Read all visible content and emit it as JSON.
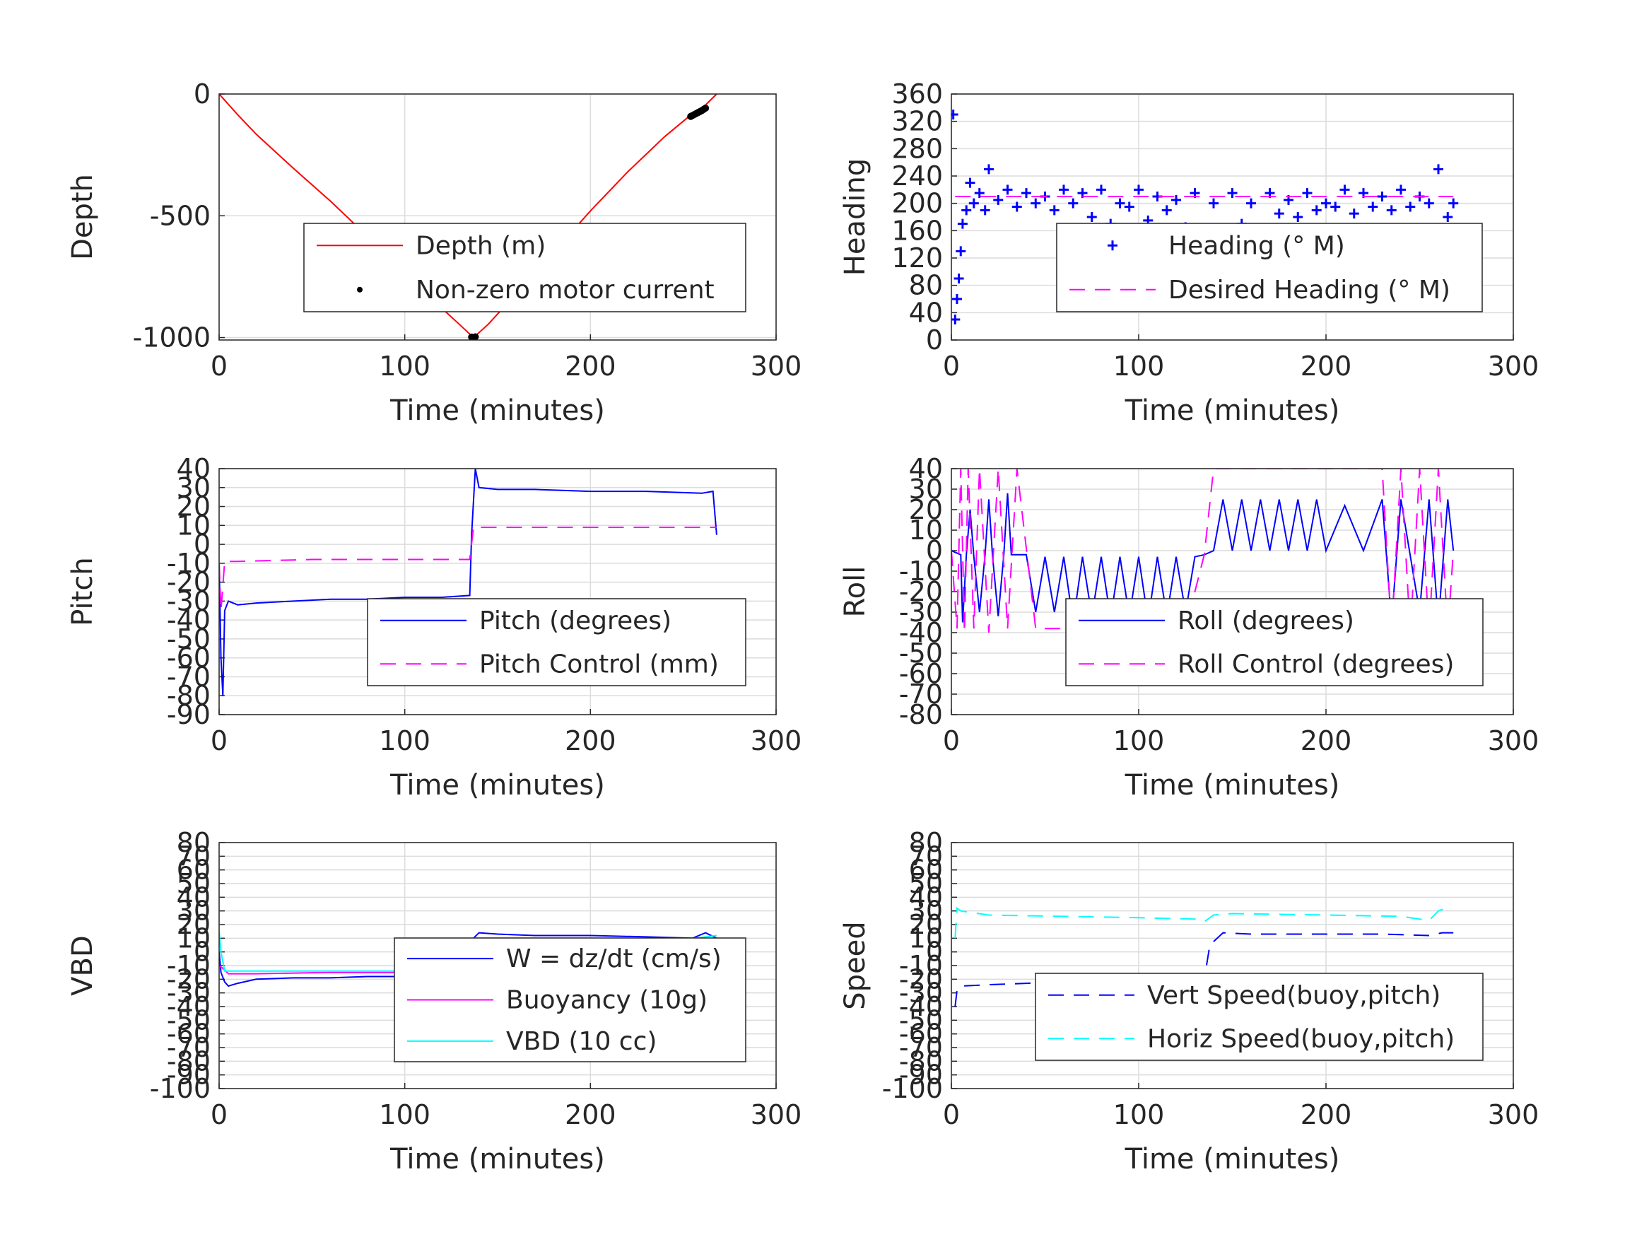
{
  "figure": {
    "panels": [
      {
        "id": "depth",
        "ylabel": "Depth",
        "xlabel": "Time (minutes)",
        "yticks": [
          "-1000",
          "-500",
          "0"
        ],
        "xticks": [
          "0",
          "100",
          "200",
          "300"
        ],
        "legend": [
          "Depth (m)",
          "Non-zero motor current"
        ]
      },
      {
        "id": "heading",
        "ylabel": "Heading",
        "xlabel": "Time (minutes)",
        "yticks": [
          "0",
          "40",
          "80",
          "120",
          "160",
          "200",
          "240",
          "280",
          "320",
          "360"
        ],
        "xticks": [
          "0",
          "100",
          "200",
          "300"
        ],
        "legend": [
          "Heading (° M)",
          "Desired Heading (° M)"
        ]
      },
      {
        "id": "pitch",
        "ylabel": "Pitch",
        "xlabel": "Time (minutes)",
        "yticks": [
          "-90",
          "-80",
          "-70",
          "-60",
          "-50",
          "-40",
          "-30",
          "-20",
          "-10",
          "0",
          "10",
          "20",
          "30",
          "40"
        ],
        "xticks": [
          "0",
          "100",
          "200",
          "300"
        ],
        "legend": [
          "Pitch (degrees)",
          "Pitch Control (mm)"
        ]
      },
      {
        "id": "roll",
        "ylabel": "Roll",
        "xlabel": "Time (minutes)",
        "yticks": [
          "-80",
          "-70",
          "-60",
          "-50",
          "-40",
          "-30",
          "-20",
          "-10",
          "0",
          "10",
          "20",
          "30",
          "40"
        ],
        "xticks": [
          "0",
          "100",
          "200",
          "300"
        ],
        "legend": [
          "Roll (degrees)",
          "Roll Control (degrees)"
        ]
      },
      {
        "id": "vbd",
        "ylabel": "VBD",
        "xlabel": "Time (minutes)",
        "yticks": [
          "-100",
          "-90",
          "-80",
          "-70",
          "-60",
          "-50",
          "-40",
          "-30",
          "-20",
          "-10",
          "0",
          "10",
          "20",
          "30",
          "40",
          "50",
          "60",
          "70",
          "80"
        ],
        "xticks": [
          "0",
          "100",
          "200",
          "300"
        ],
        "legend": [
          "W = dz/dt (cm/s)",
          "Buoyancy (10g)",
          "VBD (10 cc)"
        ]
      },
      {
        "id": "speed",
        "ylabel": "Speed",
        "xlabel": "Time (minutes)",
        "yticks": [
          "-100",
          "-90",
          "-80",
          "-70",
          "-60",
          "-50",
          "-40",
          "-30",
          "-20",
          "-10",
          "0",
          "10",
          "20",
          "30",
          "40",
          "50",
          "60",
          "70",
          "80"
        ],
        "xticks": [
          "0",
          "100",
          "200",
          "300"
        ],
        "legend": [
          "Vert Speed(buoy,pitch)",
          "Horiz Speed(buoy,pitch)"
        ]
      }
    ]
  },
  "chart_data": [
    {
      "type": "line",
      "title": "",
      "xlabel": "Time (minutes)",
      "ylabel": "Depth",
      "xlim": [
        0,
        300
      ],
      "ylim": [
        -1010,
        0
      ],
      "grid": true,
      "legend_position": "center-right",
      "series": [
        {
          "name": "Depth (m)",
          "color": "#ff0000",
          "style": "solid",
          "x": [
            0,
            10,
            20,
            40,
            60,
            80,
            100,
            120,
            130,
            137,
            145,
            160,
            180,
            200,
            220,
            240,
            255,
            262,
            268
          ],
          "y": [
            0,
            -85,
            -165,
            -305,
            -440,
            -585,
            -730,
            -880,
            -950,
            -1000,
            -945,
            -820,
            -650,
            -480,
            -320,
            -175,
            -80,
            -45,
            0
          ]
        },
        {
          "name": "Non-zero motor current",
          "color": "#000000",
          "style": "marker-dot",
          "x": [
            136,
            137,
            138,
            254,
            255,
            256,
            257,
            258,
            259,
            260,
            261,
            262
          ],
          "y": [
            -998,
            -1000,
            -997,
            -92,
            -88,
            -84,
            -80,
            -76,
            -72,
            -68,
            -63,
            -58
          ]
        }
      ]
    },
    {
      "type": "scatter",
      "title": "",
      "xlabel": "Time (minutes)",
      "ylabel": "Heading",
      "xlim": [
        0,
        300
      ],
      "ylim": [
        0,
        360
      ],
      "grid": true,
      "legend_position": "lower-right",
      "series": [
        {
          "name": "Heading (° M)",
          "color": "#0000ff",
          "style": "marker-plus",
          "x": [
            1,
            2,
            3,
            4,
            5,
            6,
            8,
            10,
            12,
            15,
            18,
            20,
            25,
            30,
            35,
            40,
            45,
            50,
            55,
            60,
            65,
            70,
            75,
            80,
            85,
            90,
            95,
            100,
            105,
            110,
            115,
            120,
            125,
            130,
            135,
            140,
            145,
            150,
            155,
            160,
            165,
            170,
            175,
            180,
            185,
            190,
            195,
            200,
            205,
            210,
            215,
            220,
            225,
            230,
            235,
            240,
            245,
            250,
            255,
            260,
            265,
            268
          ],
          "y": [
            330,
            30,
            60,
            90,
            130,
            170,
            190,
            230,
            200,
            215,
            190,
            250,
            205,
            220,
            195,
            215,
            200,
            210,
            190,
            220,
            200,
            215,
            180,
            220,
            170,
            200,
            195,
            220,
            175,
            210,
            190,
            205,
            165,
            215,
            150,
            200,
            140,
            215,
            170,
            200,
            160,
            215,
            185,
            205,
            180,
            215,
            190,
            200,
            195,
            220,
            185,
            215,
            195,
            210,
            190,
            220,
            195,
            210,
            200,
            250,
            180,
            200
          ]
        },
        {
          "name": "Desired Heading (° M)",
          "color": "#ff00ff",
          "style": "dashed",
          "x": [
            2,
            268
          ],
          "y": [
            210,
            210
          ]
        }
      ]
    },
    {
      "type": "line",
      "title": "",
      "xlabel": "Time (minutes)",
      "ylabel": "Pitch",
      "xlim": [
        0,
        300
      ],
      "ylim": [
        -90,
        40
      ],
      "grid": true,
      "legend_position": "lower-right",
      "series": [
        {
          "name": "Pitch (degrees)",
          "color": "#0000ff",
          "style": "solid",
          "x": [
            0,
            1,
            2,
            3,
            5,
            10,
            20,
            40,
            60,
            80,
            100,
            120,
            135,
            136,
            138,
            140,
            150,
            170,
            200,
            230,
            260,
            266,
            268
          ],
          "y": [
            -10,
            -60,
            -80,
            -35,
            -30,
            -32,
            -31,
            -30,
            -29,
            -29,
            -28,
            -28,
            -27,
            5,
            40,
            30,
            29,
            29,
            28,
            28,
            27,
            28,
            5
          ]
        },
        {
          "name": "Pitch Control (mm)",
          "color": "#ff00ff",
          "style": "dashed",
          "x": [
            0,
            1,
            3,
            10,
            50,
            100,
            135,
            137,
            140,
            200,
            268
          ],
          "y": [
            -10,
            -35,
            -9,
            -9,
            -8,
            -8,
            -8,
            9,
            9,
            9,
            9
          ]
        }
      ]
    },
    {
      "type": "line",
      "title": "",
      "xlabel": "Time (minutes)",
      "ylabel": "Roll",
      "xlim": [
        0,
        300
      ],
      "ylim": [
        -80,
        40
      ],
      "grid": true,
      "legend_position": "lower-right",
      "series": [
        {
          "name": "Roll (degrees)",
          "color": "#0000ff",
          "style": "solid",
          "x": [
            0,
            5,
            6,
            8,
            10,
            12,
            15,
            18,
            20,
            22,
            25,
            28,
            30,
            32,
            35,
            40,
            45,
            50,
            55,
            60,
            65,
            70,
            75,
            80,
            85,
            90,
            95,
            100,
            105,
            110,
            115,
            120,
            125,
            130,
            135,
            140,
            145,
            150,
            155,
            160,
            165,
            170,
            175,
            180,
            185,
            190,
            195,
            200,
            210,
            220,
            230,
            235,
            240,
            250,
            255,
            260,
            265,
            268
          ],
          "y": [
            0,
            -2,
            -35,
            -2,
            20,
            -3,
            -30,
            -2,
            25,
            -3,
            -32,
            -2,
            28,
            -2,
            -2,
            -2,
            -30,
            -3,
            -30,
            -3,
            -35,
            -3,
            -32,
            -3,
            -33,
            -3,
            -32,
            -3,
            -34,
            -3,
            -32,
            -3,
            -30,
            -3,
            -2,
            0,
            25,
            0,
            25,
            0,
            25,
            0,
            25,
            0,
            25,
            0,
            25,
            0,
            22,
            0,
            25,
            -35,
            25,
            -30,
            25,
            -35,
            25,
            0
          ]
        },
        {
          "name": "Roll Control (degrees)",
          "color": "#ff00ff",
          "style": "dashed",
          "x": [
            0,
            3,
            5,
            7,
            9,
            12,
            15,
            20,
            25,
            30,
            35,
            45,
            55,
            65,
            75,
            85,
            95,
            105,
            115,
            125,
            135,
            140,
            150,
            160,
            170,
            180,
            190,
            200,
            210,
            220,
            230,
            235,
            240,
            245,
            250,
            255,
            260,
            265,
            268
          ],
          "y": [
            0,
            -38,
            40,
            -40,
            40,
            -38,
            40,
            -40,
            40,
            -38,
            40,
            -38,
            -38,
            -38,
            -38,
            -38,
            -38,
            -38,
            -38,
            -38,
            -2,
            40,
            40,
            40,
            40,
            40,
            40,
            40,
            40,
            40,
            40,
            -40,
            40,
            -40,
            40,
            -40,
            40,
            -40,
            0
          ]
        }
      ]
    },
    {
      "type": "line",
      "title": "",
      "xlabel": "Time (minutes)",
      "ylabel": "VBD",
      "xlim": [
        0,
        300
      ],
      "ylim": [
        -100,
        80
      ],
      "grid": true,
      "legend_position": "lower-right",
      "series": [
        {
          "name": "W = dz/dt (cm/s)",
          "color": "#0000ff",
          "style": "solid",
          "x": [
            0,
            1,
            3,
            5,
            10,
            20,
            40,
            60,
            80,
            100,
            120,
            135,
            137,
            140,
            150,
            170,
            200,
            230,
            255,
            262,
            268
          ],
          "y": [
            0,
            -15,
            -22,
            -25,
            -23,
            -20,
            -19,
            -19,
            -18,
            -18,
            -17,
            -17,
            10,
            14,
            13,
            12,
            12,
            11,
            10,
            14,
            10
          ]
        },
        {
          "name": "Buoyancy (10g)",
          "color": "#ff00ff",
          "style": "solid",
          "x": [
            0,
            2,
            5,
            20,
            60,
            100,
            135,
            137,
            150,
            200,
            250,
            268
          ],
          "y": [
            -10,
            -12,
            -16,
            -16,
            -15,
            -15,
            -15,
            8,
            9,
            9,
            7,
            10
          ]
        },
        {
          "name": "VBD (10 cc)",
          "color": "#00ffff",
          "style": "solid",
          "x": [
            0,
            1,
            3,
            10,
            60,
            100,
            135,
            137,
            150,
            200,
            250,
            268
          ],
          "y": [
            15,
            0,
            -14,
            -14,
            -14,
            -14,
            -14,
            10,
            10,
            10,
            9,
            12
          ]
        }
      ]
    },
    {
      "type": "line",
      "title": "",
      "xlabel": "Time (minutes)",
      "ylabel": "Speed",
      "xlim": [
        0,
        300
      ],
      "ylim": [
        -100,
        80
      ],
      "grid": true,
      "legend_position": "lower-right",
      "series": [
        {
          "name": "Vert Speed(buoy,pitch)",
          "color": "#0000ff",
          "style": "dashed",
          "x": [
            2,
            3,
            5,
            20,
            60,
            100,
            120,
            130,
            135,
            138,
            145,
            160,
            200,
            230,
            255,
            262,
            268
          ],
          "y": [
            -40,
            -28,
            -25,
            -24,
            -22,
            -21,
            -21,
            -20,
            -20,
            5,
            14,
            13,
            13,
            13,
            12,
            14,
            14
          ]
        },
        {
          "name": "Horiz Speed(buoy,pitch)",
          "color": "#00ffff",
          "style": "dashed",
          "x": [
            2,
            3,
            5,
            20,
            60,
            100,
            130,
            135,
            140,
            150,
            200,
            240,
            255,
            260,
            264
          ],
          "y": [
            10,
            32,
            30,
            27,
            26,
            25,
            24,
            22,
            27,
            28,
            27,
            26,
            23,
            30,
            32
          ]
        }
      ]
    }
  ]
}
